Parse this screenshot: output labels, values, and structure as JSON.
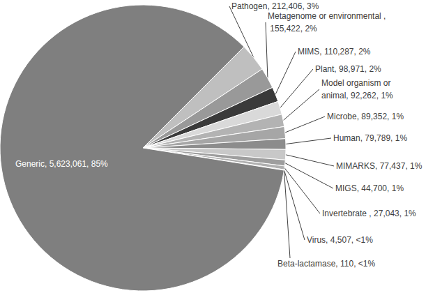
{
  "chart_data": {
    "type": "pie",
    "categories": [
      "Pathogen",
      "Metagenome or environmental",
      "MIMS",
      "Plant",
      "Model organism or animal",
      "Microbe",
      "Human",
      "MIMARKS",
      "MIGS",
      "Invertebrate",
      "Virus",
      "Beta-lactamase",
      "Generic"
    ],
    "values": [
      212406,
      155422,
      110287,
      98971,
      92262,
      89352,
      79789,
      77437,
      44700,
      27043,
      4507,
      110,
      5623061
    ],
    "value_labels": [
      "Pathogen, 212,406, 3%",
      "Metagenome or environmental , 155,422, 2%",
      "MIMS, 110,287, 2%",
      "Plant, 98,971, 2%",
      "Model organism or animal, 92,262, 1%",
      "Microbe, 89,352, 1%",
      "Human, 79,789, 1%",
      "MIMARKS, 77,437, 1%",
      "MIGS, 44,700, 1%",
      "Invertebrate , 27,043, 1%",
      "Virus, 4,507, <1%",
      "Beta-lactamase, 110, <1%",
      "Generic, 5,623,061, 85%"
    ],
    "colors": [
      "#bfbfbf",
      "#999999",
      "#3a3a3a",
      "#d9d9d9",
      "#b3b3b3",
      "#a6a6a6",
      "#8c8c8c",
      "#c8c8c8",
      "#9e9e9e",
      "#b0b0b0",
      "#555555",
      "#ffffff",
      "#7f7f7f"
    ],
    "data_labels": true
  }
}
